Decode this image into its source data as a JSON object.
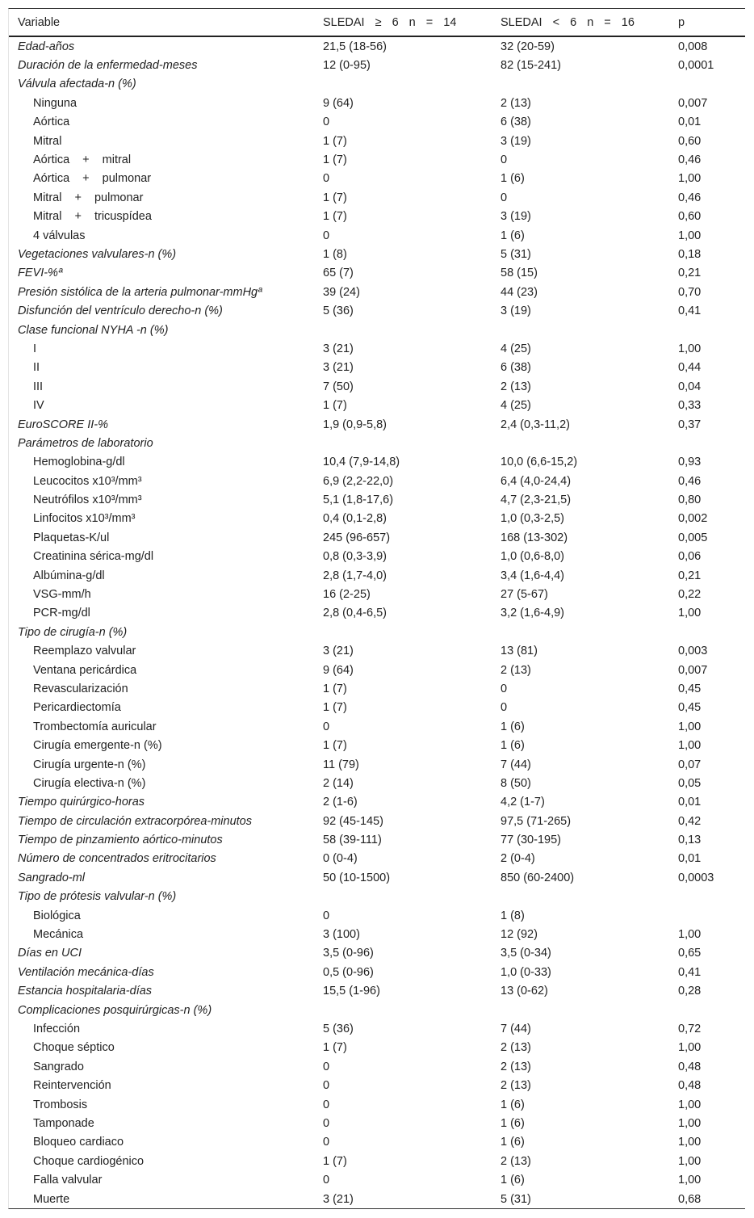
{
  "header": {
    "variable": "Variable",
    "group1": "SLEDAI ≥ 6 n = 14",
    "group2": "SLEDAI < 6 n = 16",
    "p": "p"
  },
  "rows": [
    {
      "level": "top",
      "label": "Edad-años",
      "g1": "21,5 (18-56)",
      "g2": "32 (20-59)",
      "p": "0,008"
    },
    {
      "level": "top",
      "label": "Duración de la enfermedad-meses",
      "g1": "12 (0-95)",
      "g2": "82 (15-241)",
      "p": "0,0001"
    },
    {
      "level": "top",
      "label": "Válvula afectada-n (%)",
      "g1": "",
      "g2": "",
      "p": ""
    },
    {
      "level": "sub",
      "label": "Ninguna",
      "g1": "9 (64)",
      "g2": "2 (13)",
      "p": "0,007"
    },
    {
      "level": "sub",
      "label": "Aórtica",
      "g1": "0",
      "g2": "6 (38)",
      "p": "0,01"
    },
    {
      "level": "sub",
      "label": "Mitral",
      "g1": "1 (7)",
      "g2": "3 (19)",
      "p": "0,60"
    },
    {
      "level": "sub",
      "label": "Aórtica + mitral",
      "g1": "1 (7)",
      "g2": "0",
      "p": "0,46"
    },
    {
      "level": "sub",
      "label": "Aórtica + pulmonar",
      "g1": "0",
      "g2": "1 (6)",
      "p": "1,00"
    },
    {
      "level": "sub",
      "label": "Mitral + pulmonar",
      "g1": "1 (7)",
      "g2": "0",
      "p": "0,46"
    },
    {
      "level": "sub",
      "label": "Mitral + tricuspídea",
      "g1": "1 (7)",
      "g2": "3 (19)",
      "p": "0,60"
    },
    {
      "level": "sub",
      "label": "4 válvulas",
      "g1": "0",
      "g2": "1 (6)",
      "p": "1,00"
    },
    {
      "level": "top",
      "label": "Vegetaciones valvulares-n (%)",
      "g1": "1 (8)",
      "g2": "5 (31)",
      "p": "0,18"
    },
    {
      "level": "top",
      "label": "FEVI-%ª",
      "g1": "65 (7)",
      "g2": "58 (15)",
      "p": "0,21"
    },
    {
      "level": "top",
      "label": "Presión sistólica de la arteria pulmonar-mmHgª",
      "g1": "39 (24)",
      "g2": "44 (23)",
      "p": "0,70"
    },
    {
      "level": "top",
      "label": "Disfunción del ventrículo derecho-n (%)",
      "g1": "5 (36)",
      "g2": "3 (19)",
      "p": "0,41"
    },
    {
      "level": "top",
      "label": "Clase funcional NYHA -n (%)",
      "g1": "",
      "g2": "",
      "p": ""
    },
    {
      "level": "sub",
      "label": "I",
      "g1": "3 (21)",
      "g2": "4 (25)",
      "p": "1,00"
    },
    {
      "level": "sub",
      "label": "II",
      "g1": "3 (21)",
      "g2": "6 (38)",
      "p": "0,44"
    },
    {
      "level": "sub",
      "label": "III",
      "g1": "7 (50)",
      "g2": "2 (13)",
      "p": "0,04"
    },
    {
      "level": "sub",
      "label": "IV",
      "g1": "1 (7)",
      "g2": "4 (25)",
      "p": "0,33"
    },
    {
      "level": "top",
      "label": "EuroSCORE II-%",
      "g1": "1,9 (0,9-5,8)",
      "g2": "2,4 (0,3-11,2)",
      "p": "0,37"
    },
    {
      "level": "top",
      "label": "Parámetros de laboratorio",
      "g1": "",
      "g2": "",
      "p": ""
    },
    {
      "level": "sub",
      "label": "Hemoglobina-g/dl",
      "g1": "10,4 (7,9-14,8)",
      "g2": "10,0 (6,6-15,2)",
      "p": "0,93"
    },
    {
      "level": "sub",
      "label": "Leucocitos x10³/mm³",
      "g1": "6,9 (2,2-22,0)",
      "g2": "6,4 (4,0-24,4)",
      "p": "0,46"
    },
    {
      "level": "sub",
      "label": "Neutrófilos x10³/mm³",
      "g1": "5,1 (1,8-17,6)",
      "g2": "4,7 (2,3-21,5)",
      "p": "0,80"
    },
    {
      "level": "sub",
      "label": "Linfocitos x10³/mm³",
      "g1": "0,4 (0,1-2,8)",
      "g2": "1,0 (0,3-2,5)",
      "p": "0,002"
    },
    {
      "level": "sub",
      "label": "Plaquetas-K/ul",
      "g1": "245 (96-657)",
      "g2": "168 (13-302)",
      "p": "0,005"
    },
    {
      "level": "sub",
      "label": "Creatinina sérica-mg/dl",
      "g1": "0,8 (0,3-3,9)",
      "g2": "1,0 (0,6-8,0)",
      "p": "0,06"
    },
    {
      "level": "sub",
      "label": "Albúmina-g/dl",
      "g1": "2,8 (1,7-4,0)",
      "g2": "3,4 (1,6-4,4)",
      "p": "0,21"
    },
    {
      "level": "sub",
      "label": "VSG-mm/h",
      "g1": "16 (2-25)",
      "g2": "27 (5-67)",
      "p": "0,22"
    },
    {
      "level": "sub",
      "label": "PCR-mg/dl",
      "g1": "2,8 (0,4-6,5)",
      "g2": "3,2 (1,6-4,9)",
      "p": "1,00"
    },
    {
      "level": "top",
      "label": "Tipo de cirugía-n (%)",
      "g1": "",
      "g2": "",
      "p": ""
    },
    {
      "level": "sub",
      "label": "Reemplazo valvular",
      "g1": "3 (21)",
      "g2": "13 (81)",
      "p": "0,003"
    },
    {
      "level": "sub",
      "label": "Ventana pericárdica",
      "g1": "9 (64)",
      "g2": "2 (13)",
      "p": "0,007"
    },
    {
      "level": "sub",
      "label": "Revascularización",
      "g1": "1 (7)",
      "g2": "0",
      "p": "0,45"
    },
    {
      "level": "sub",
      "label": "Pericardiectomía",
      "g1": "1 (7)",
      "g2": "0",
      "p": "0,45"
    },
    {
      "level": "sub",
      "label": "Trombectomía auricular",
      "g1": "0",
      "g2": "1 (6)",
      "p": "1,00"
    },
    {
      "level": "sub",
      "label": "Cirugía emergente-n (%)",
      "g1": "1 (7)",
      "g2": "1 (6)",
      "p": "1,00"
    },
    {
      "level": "sub",
      "label": "Cirugía urgente-n (%)",
      "g1": "11 (79)",
      "g2": "7 (44)",
      "p": "0,07"
    },
    {
      "level": "sub",
      "label": "Cirugía electiva-n (%)",
      "g1": "2 (14)",
      "g2": "8 (50)",
      "p": "0,05"
    },
    {
      "level": "top",
      "label": "Tiempo quirúrgico-horas",
      "g1": "2 (1-6)",
      "g2": "4,2 (1-7)",
      "p": "0,01"
    },
    {
      "level": "top",
      "label": "Tiempo de circulación extracorpórea-minutos",
      "g1": "92 (45-145)",
      "g2": "97,5 (71-265)",
      "p": "0,42"
    },
    {
      "level": "top",
      "label": "Tiempo de pinzamiento aórtico-minutos",
      "g1": "58 (39-111)",
      "g2": "77 (30-195)",
      "p": "0,13"
    },
    {
      "level": "top",
      "label": "Número de concentrados eritrocitarios",
      "g1": "0 (0-4)",
      "g2": "2 (0-4)",
      "p": "0,01"
    },
    {
      "level": "top",
      "label": "Sangrado-ml",
      "g1": "50 (10-1500)",
      "g2": "850 (60-2400)",
      "p": "0,0003"
    },
    {
      "level": "top",
      "label": "Tipo de prótesis valvular-n (%)",
      "g1": "",
      "g2": "",
      "p": ""
    },
    {
      "level": "sub",
      "label": "Biológica",
      "g1": "0",
      "g2": "1 (8)",
      "p": ""
    },
    {
      "level": "sub",
      "label": "Mecánica",
      "g1": "3 (100)",
      "g2": "12 (92)",
      "p": "1,00"
    },
    {
      "level": "top",
      "label": "Días en UCI",
      "g1": "3,5 (0-96)",
      "g2": "3,5 (0-34)",
      "p": "0,65"
    },
    {
      "level": "top",
      "label": "Ventilación mecánica-días",
      "g1": "0,5 (0-96)",
      "g2": "1,0 (0-33)",
      "p": "0,41"
    },
    {
      "level": "top",
      "label": "Estancia hospitalaria-días",
      "g1": "15,5 (1-96)",
      "g2": "13 (0-62)",
      "p": "0,28"
    },
    {
      "level": "top",
      "label": "Complicaciones posquirúrgicas-n (%)",
      "g1": "",
      "g2": "",
      "p": ""
    },
    {
      "level": "sub",
      "label": "Infección",
      "g1": "5 (36)",
      "g2": "7 (44)",
      "p": "0,72"
    },
    {
      "level": "sub",
      "label": "Choque séptico",
      "g1": "1 (7)",
      "g2": "2 (13)",
      "p": "1,00"
    },
    {
      "level": "sub",
      "label": "Sangrado",
      "g1": "0",
      "g2": "2 (13)",
      "p": "0,48"
    },
    {
      "level": "sub",
      "label": "Reintervención",
      "g1": "0",
      "g2": "2 (13)",
      "p": "0,48"
    },
    {
      "level": "sub",
      "label": "Trombosis",
      "g1": "0",
      "g2": "1 (6)",
      "p": "1,00"
    },
    {
      "level": "sub",
      "label": "Tamponade",
      "g1": "0",
      "g2": "1 (6)",
      "p": "1,00"
    },
    {
      "level": "sub",
      "label": "Bloqueo cardiaco",
      "g1": "0",
      "g2": "1 (6)",
      "p": "1,00"
    },
    {
      "level": "sub",
      "label": "Choque cardiogénico",
      "g1": "1 (7)",
      "g2": "2 (13)",
      "p": "1,00"
    },
    {
      "level": "sub",
      "label": "Falla valvular",
      "g1": "0",
      "g2": "1 (6)",
      "p": "1,00"
    },
    {
      "level": "sub",
      "label": "Muerte",
      "g1": "3 (21)",
      "g2": "5 (31)",
      "p": "0,68"
    }
  ]
}
